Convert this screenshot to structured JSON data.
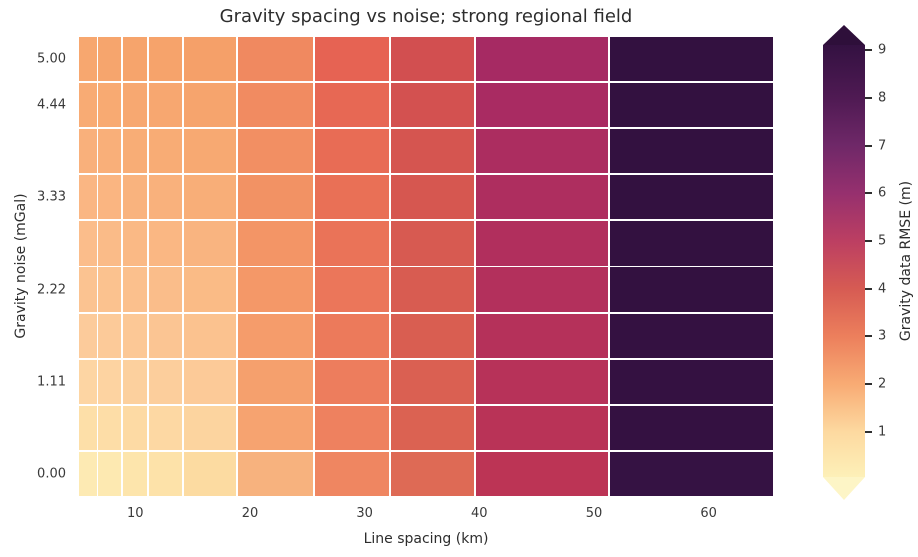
{
  "title": "Gravity spacing vs noise; strong regional field",
  "x_axis": {
    "label": "Line spacing (km)",
    "ticks": [
      10,
      20,
      30,
      40,
      50,
      60
    ],
    "range_km": [
      5.0,
      65.7
    ]
  },
  "y_axis": {
    "label": "Gravity noise (mGal)",
    "ticks": [
      {
        "row": 0,
        "label": "5.00"
      },
      {
        "row": 1,
        "label": "4.44"
      },
      {
        "row": 3,
        "label": "3.33"
      },
      {
        "row": 5,
        "label": "2.22"
      },
      {
        "row": 7,
        "label": "1.11"
      },
      {
        "row": 9,
        "label": "0.00"
      }
    ]
  },
  "colorbar": {
    "label": "Gravity data RMSE (m)",
    "ticks": [
      1,
      2,
      3,
      4,
      5,
      6,
      7,
      8,
      9
    ],
    "value_range": [
      0.05,
      9.11
    ],
    "extend": "both",
    "gradient_stops": [
      {
        "value": 0.05,
        "color": "#fdf0b8"
      },
      {
        "value": 1,
        "color": "#fdd9a0"
      },
      {
        "value": 2,
        "color": "#f8ab74"
      },
      {
        "value": 3,
        "color": "#ec7f5c"
      },
      {
        "value": 4,
        "color": "#d65b53"
      },
      {
        "value": 5,
        "color": "#bc3f62"
      },
      {
        "value": 6,
        "color": "#96306e"
      },
      {
        "value": 7,
        "color": "#6f2868"
      },
      {
        "value": 8,
        "color": "#4f1a53"
      },
      {
        "value": 9,
        "color": "#361243"
      },
      {
        "value": 9.11,
        "color": "#341142"
      }
    ],
    "over_color": "#2e0f3a",
    "under_color": "#fdf5c6"
  },
  "chart_data": {
    "type": "heatmap",
    "title": "Gravity spacing vs noise; strong regional field",
    "xlabel": "Line spacing (km)",
    "ylabel": "Gravity noise (mGal)",
    "colorbar_label": "Gravity data RMSE (m)",
    "colormap": "magma_r",
    "grid_line_color": "#ffffff",
    "x_edges_km": [
      5.0,
      6.7,
      8.8,
      11.1,
      14.2,
      18.9,
      25.6,
      32.2,
      39.6,
      51.3,
      65.7
    ],
    "x_centers_km": [
      5.8,
      7.7,
      9.9,
      12.7,
      16.6,
      22.3,
      28.9,
      35.9,
      45.4,
      58.5
    ],
    "y_values_mgal": [
      5.0,
      4.44,
      3.89,
      3.33,
      2.78,
      2.22,
      1.67,
      1.11,
      0.56,
      0.0
    ],
    "values_rmse_m": [
      [
        2.1,
        2.1,
        2.2,
        2.2,
        2.3,
        2.8,
        3.5,
        4.4,
        5.9,
        9.5
      ],
      [
        2.0,
        2.0,
        2.1,
        2.1,
        2.2,
        2.7,
        3.4,
        4.3,
        5.9,
        9.5
      ],
      [
        1.9,
        1.9,
        2.0,
        2.0,
        2.1,
        2.6,
        3.4,
        4.3,
        5.8,
        9.5
      ],
      [
        1.7,
        1.8,
        1.8,
        1.9,
        2.0,
        2.5,
        3.3,
        4.2,
        5.8,
        9.5
      ],
      [
        1.6,
        1.6,
        1.7,
        1.7,
        1.8,
        2.4,
        3.2,
        4.2,
        5.7,
        9.5
      ],
      [
        1.4,
        1.4,
        1.5,
        1.5,
        1.6,
        2.3,
        3.2,
        4.1,
        5.7,
        9.5
      ],
      [
        1.2,
        1.2,
        1.3,
        1.3,
        1.4,
        2.2,
        3.1,
        4.0,
        5.6,
        9.5
      ],
      [
        1.0,
        1.0,
        1.1,
        1.1,
        1.2,
        2.1,
        3.1,
        4.0,
        5.6,
        9.5
      ],
      [
        0.8,
        0.8,
        0.9,
        0.9,
        1.0,
        1.9,
        3.0,
        3.9,
        5.5,
        9.5
      ],
      [
        0.6,
        0.6,
        0.7,
        0.7,
        0.9,
        1.8,
        2.9,
        3.8,
        5.4,
        9.5
      ]
    ],
    "cell_colors": [
      [
        "#f7a76f",
        "#f6a56d",
        "#f6a46c",
        "#f6a36b",
        "#f5a069",
        "#f08960",
        "#e66353",
        "#d24f50",
        "#a62a63",
        "#331140"
      ],
      [
        "#f8ab74",
        "#f8aa72",
        "#f7a871",
        "#f7a770",
        "#f6a46d",
        "#f18b61",
        "#e76854",
        "#d35150",
        "#a92b62",
        "#331140"
      ],
      [
        "#f9b07b",
        "#f9af79",
        "#f8ad76",
        "#f8ac75",
        "#f7a972",
        "#f28f63",
        "#e86c55",
        "#d55550",
        "#ac2d60",
        "#331140"
      ],
      [
        "#fab683",
        "#fab581",
        "#f9b37e",
        "#f9b17c",
        "#f8ae78",
        "#f29264",
        "#e97056",
        "#d65750",
        "#ae2e5f",
        "#331140"
      ],
      [
        "#fbbd8b",
        "#fabb88",
        "#fab985",
        "#fab783",
        "#f9b480",
        "#f39566",
        "#ea7358",
        "#d75a51",
        "#b12f5d",
        "#331140"
      ],
      [
        "#fbc391",
        "#fbc28f",
        "#fbc08d",
        "#fabd8a",
        "#fabb86",
        "#f49868",
        "#eb765a",
        "#d85c51",
        "#b3305c",
        "#331140"
      ],
      [
        "#fccb9b",
        "#fcca99",
        "#fcc896",
        "#fbc593",
        "#fbc28f",
        "#f59c6b",
        "#ec7a5b",
        "#d95e51",
        "#b5315a",
        "#341141"
      ],
      [
        "#fdd5a3",
        "#fdd3a1",
        "#fcd09e",
        "#fcce9c",
        "#fcca98",
        "#f5a06d",
        "#ed7d5d",
        "#da6052",
        "#b73259",
        "#341141"
      ],
      [
        "#fddfa8",
        "#fddda7",
        "#fddaa4",
        "#fdd8a3",
        "#fcd49f",
        "#f6a370",
        "#ee815f",
        "#db6252",
        "#b93357",
        "#341141"
      ],
      [
        "#fdeab3",
        "#fde9b1",
        "#fde5ac",
        "#fde2a9",
        "#fcdba1",
        "#f7b27e",
        "#ef8661",
        "#de6a55",
        "#bc3455",
        "#351243"
      ]
    ]
  }
}
